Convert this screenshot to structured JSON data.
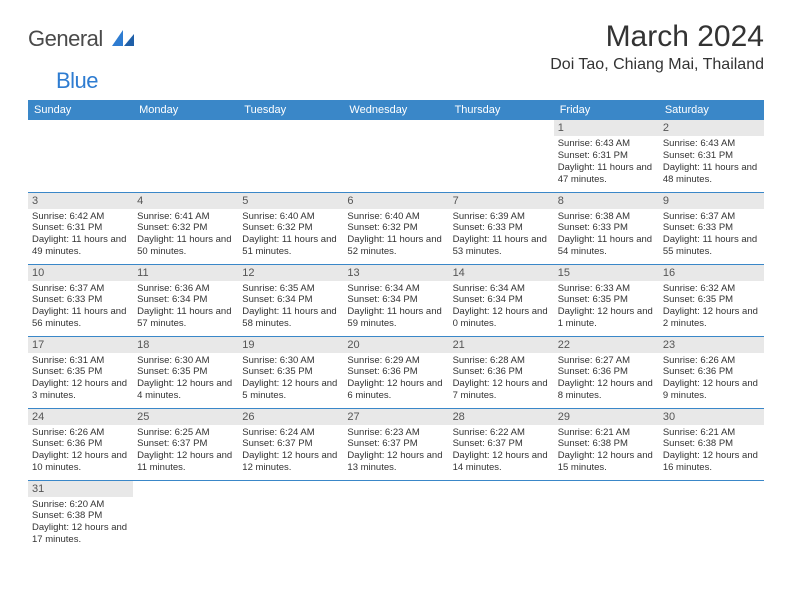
{
  "logo": {
    "text1": "General",
    "text2": "Blue"
  },
  "title": "March 2024",
  "location": "Doi Tao, Chiang Mai, Thailand",
  "colors": {
    "header_bg": "#3a87c8",
    "header_text": "#ffffff",
    "daynum_bg": "#e8e8e8",
    "row_border": "#3a87c8",
    "logo_gray": "#4a4a4a",
    "logo_blue": "#2e7cd1",
    "body_bg": "#ffffff",
    "text": "#333333"
  },
  "fonts": {
    "title_pt": 30,
    "location_pt": 16,
    "header_pt": 11,
    "daynum_pt": 11,
    "cell_pt": 9.5,
    "logo_pt": 22
  },
  "day_headers": [
    "Sunday",
    "Monday",
    "Tuesday",
    "Wednesday",
    "Thursday",
    "Friday",
    "Saturday"
  ],
  "weeks": [
    [
      null,
      null,
      null,
      null,
      null,
      {
        "n": "1",
        "sr": "6:43 AM",
        "ss": "6:31 PM",
        "dl": "11 hours and 47 minutes."
      },
      {
        "n": "2",
        "sr": "6:43 AM",
        "ss": "6:31 PM",
        "dl": "11 hours and 48 minutes."
      }
    ],
    [
      {
        "n": "3",
        "sr": "6:42 AM",
        "ss": "6:31 PM",
        "dl": "11 hours and 49 minutes."
      },
      {
        "n": "4",
        "sr": "6:41 AM",
        "ss": "6:32 PM",
        "dl": "11 hours and 50 minutes."
      },
      {
        "n": "5",
        "sr": "6:40 AM",
        "ss": "6:32 PM",
        "dl": "11 hours and 51 minutes."
      },
      {
        "n": "6",
        "sr": "6:40 AM",
        "ss": "6:32 PM",
        "dl": "11 hours and 52 minutes."
      },
      {
        "n": "7",
        "sr": "6:39 AM",
        "ss": "6:33 PM",
        "dl": "11 hours and 53 minutes."
      },
      {
        "n": "8",
        "sr": "6:38 AM",
        "ss": "6:33 PM",
        "dl": "11 hours and 54 minutes."
      },
      {
        "n": "9",
        "sr": "6:37 AM",
        "ss": "6:33 PM",
        "dl": "11 hours and 55 minutes."
      }
    ],
    [
      {
        "n": "10",
        "sr": "6:37 AM",
        "ss": "6:33 PM",
        "dl": "11 hours and 56 minutes."
      },
      {
        "n": "11",
        "sr": "6:36 AM",
        "ss": "6:34 PM",
        "dl": "11 hours and 57 minutes."
      },
      {
        "n": "12",
        "sr": "6:35 AM",
        "ss": "6:34 PM",
        "dl": "11 hours and 58 minutes."
      },
      {
        "n": "13",
        "sr": "6:34 AM",
        "ss": "6:34 PM",
        "dl": "11 hours and 59 minutes."
      },
      {
        "n": "14",
        "sr": "6:34 AM",
        "ss": "6:34 PM",
        "dl": "12 hours and 0 minutes."
      },
      {
        "n": "15",
        "sr": "6:33 AM",
        "ss": "6:35 PM",
        "dl": "12 hours and 1 minute."
      },
      {
        "n": "16",
        "sr": "6:32 AM",
        "ss": "6:35 PM",
        "dl": "12 hours and 2 minutes."
      }
    ],
    [
      {
        "n": "17",
        "sr": "6:31 AM",
        "ss": "6:35 PM",
        "dl": "12 hours and 3 minutes."
      },
      {
        "n": "18",
        "sr": "6:30 AM",
        "ss": "6:35 PM",
        "dl": "12 hours and 4 minutes."
      },
      {
        "n": "19",
        "sr": "6:30 AM",
        "ss": "6:35 PM",
        "dl": "12 hours and 5 minutes."
      },
      {
        "n": "20",
        "sr": "6:29 AM",
        "ss": "6:36 PM",
        "dl": "12 hours and 6 minutes."
      },
      {
        "n": "21",
        "sr": "6:28 AM",
        "ss": "6:36 PM",
        "dl": "12 hours and 7 minutes."
      },
      {
        "n": "22",
        "sr": "6:27 AM",
        "ss": "6:36 PM",
        "dl": "12 hours and 8 minutes."
      },
      {
        "n": "23",
        "sr": "6:26 AM",
        "ss": "6:36 PM",
        "dl": "12 hours and 9 minutes."
      }
    ],
    [
      {
        "n": "24",
        "sr": "6:26 AM",
        "ss": "6:36 PM",
        "dl": "12 hours and 10 minutes."
      },
      {
        "n": "25",
        "sr": "6:25 AM",
        "ss": "6:37 PM",
        "dl": "12 hours and 11 minutes."
      },
      {
        "n": "26",
        "sr": "6:24 AM",
        "ss": "6:37 PM",
        "dl": "12 hours and 12 minutes."
      },
      {
        "n": "27",
        "sr": "6:23 AM",
        "ss": "6:37 PM",
        "dl": "12 hours and 13 minutes."
      },
      {
        "n": "28",
        "sr": "6:22 AM",
        "ss": "6:37 PM",
        "dl": "12 hours and 14 minutes."
      },
      {
        "n": "29",
        "sr": "6:21 AM",
        "ss": "6:38 PM",
        "dl": "12 hours and 15 minutes."
      },
      {
        "n": "30",
        "sr": "6:21 AM",
        "ss": "6:38 PM",
        "dl": "12 hours and 16 minutes."
      }
    ],
    [
      {
        "n": "31",
        "sr": "6:20 AM",
        "ss": "6:38 PM",
        "dl": "12 hours and 17 minutes."
      },
      null,
      null,
      null,
      null,
      null,
      null
    ]
  ],
  "labels": {
    "sunrise": "Sunrise:",
    "sunset": "Sunset:",
    "daylight": "Daylight:"
  }
}
